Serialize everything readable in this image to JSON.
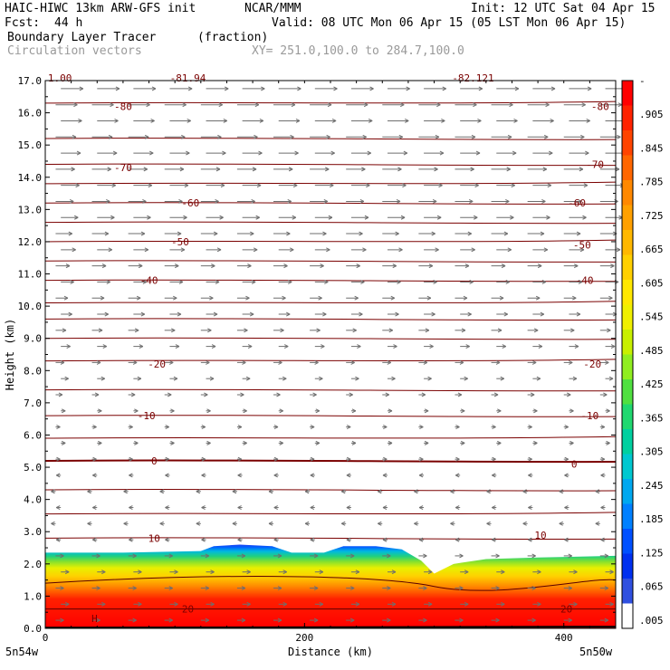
{
  "header": {
    "model": "HAIC-HIWC 13km ARW-GFS init",
    "org": "NCAR/MMM",
    "init": "Init: 12 UTC Sat 04 Apr 15",
    "fcst_label": "Fcst:",
    "fcst_value": "44 h",
    "valid": "Valid: 08 UTC Mon 06 Apr 15 (05 LST Mon 06 Apr 15)",
    "field": "Boundary Layer Tracer",
    "units": "(fraction)",
    "overlay": "Circulation vectors",
    "xsect": "XY= 251.0,100.0 to 284.7,100.0"
  },
  "chart_data": {
    "type": "heatmap",
    "ylabel": "Height (km)",
    "xlabel": "Distance (km)",
    "y_ticks": [
      "0.0",
      "1.0",
      "2.0",
      "3.0",
      "4.0",
      "5.0",
      "6.0",
      "7.0",
      "8.0",
      "9.0",
      "10.0",
      "11.0",
      "12.0",
      "13.0",
      "14.0",
      "15.0",
      "16.0",
      "17.0"
    ],
    "ylim": [
      0,
      17
    ],
    "x_ticks": [
      {
        "value": 0,
        "label": "0"
      },
      {
        "value": 200,
        "label": "200"
      },
      {
        "value": 400,
        "label": "400"
      }
    ],
    "xlim": [
      0,
      440
    ],
    "x_end_labels": {
      "left": "5n54w",
      "right": "5n50w"
    },
    "contour_labels": [
      {
        "text": "-80",
        "x": 60,
        "y": 16.2
      },
      {
        "text": "-80",
        "x": 428,
        "y": 16.2
      },
      {
        "text": "-70",
        "x": 60,
        "y": 14.3
      },
      {
        "text": "-70",
        "x": 424,
        "y": 14.4
      },
      {
        "text": "-60",
        "x": 112,
        "y": 13.2
      },
      {
        "text": "-60",
        "x": 410,
        "y": 13.2
      },
      {
        "text": "-50",
        "x": 104,
        "y": 12.0
      },
      {
        "text": "-50",
        "x": 414,
        "y": 11.9
      },
      {
        "text": "-40",
        "x": 80,
        "y": 10.8
      },
      {
        "text": "-40",
        "x": 416,
        "y": 10.8
      },
      {
        "text": "-20",
        "x": 86,
        "y": 8.2
      },
      {
        "text": "-20",
        "x": 422,
        "y": 8.2
      },
      {
        "text": "-10",
        "x": 78,
        "y": 6.6
      },
      {
        "text": "-10",
        "x": 420,
        "y": 6.6
      },
      {
        "text": "0",
        "x": 84,
        "y": 5.2
      },
      {
        "text": "0",
        "x": 408,
        "y": 5.1
      },
      {
        "text": "10",
        "x": 84,
        "y": 2.8
      },
      {
        "text": "10",
        "x": 382,
        "y": 2.9
      },
      {
        "text": "20",
        "x": 110,
        "y": 0.6
      },
      {
        "text": "20",
        "x": 402,
        "y": 0.6
      }
    ],
    "top_labels": [
      "-81.94",
      "-82.121"
    ],
    "top_left_label": "1.00",
    "low_marker": "H",
    "colorbar": {
      "labels": [
        "-",
        ".905",
        ".845",
        ".785",
        ".725",
        ".665",
        ".605",
        ".545",
        ".485",
        ".425",
        ".365",
        ".305",
        ".245",
        ".185",
        ".125",
        ".065",
        ".005"
      ],
      "colors": [
        "#ff0000",
        "#ff2200",
        "#ff4400",
        "#ff6600",
        "#ff8800",
        "#ffa000",
        "#ffb800",
        "#ffd000",
        "#ffe800",
        "#f0f000",
        "#c8f000",
        "#90ee20",
        "#50e040",
        "#20d870",
        "#00d0a0",
        "#00c8d0",
        "#00a8f0",
        "#0080ff",
        "#0050ff",
        "#0030f0",
        "#3050e0",
        "#ffffff"
      ]
    }
  }
}
